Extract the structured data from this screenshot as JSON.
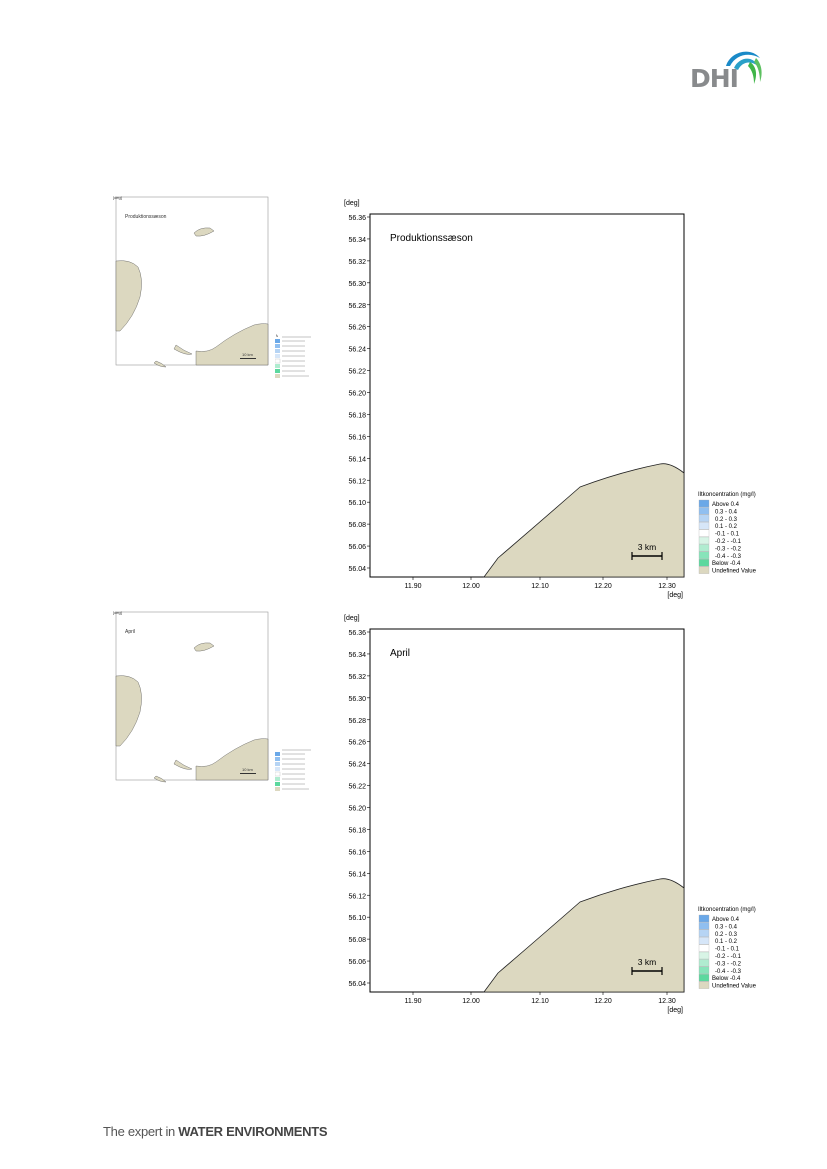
{
  "logo": {
    "text": "DHI",
    "colors": {
      "blue": "#1a8ac8",
      "green": "#3fb548",
      "grey": "#888a8c"
    }
  },
  "footer": {
    "prefix": "The expert in",
    "emphasis": "WATER ENVIRONMENTS"
  },
  "land_color": "#dcd8c0",
  "legend": {
    "title": "Iltkoncentration (mg/l)",
    "entries": [
      {
        "label": "Above  0.4",
        "color": "#6aa8e8"
      },
      {
        "label": "0.3 -  0.4",
        "color": "#90bff0"
      },
      {
        "label": "0.2 -  0.3",
        "color": "#b6d4f4"
      },
      {
        "label": "0.1 -  0.2",
        "color": "#d6e6f8"
      },
      {
        "label": "-0.1 -  0.1",
        "color": "#ffffff"
      },
      {
        "label": "-0.2 - -0.1",
        "color": "#d8f4e6"
      },
      {
        "label": "-0.3 - -0.2",
        "color": "#b0ecd0"
      },
      {
        "label": "-0.4 - -0.3",
        "color": "#88e4ba"
      },
      {
        "label": "Below -0.4",
        "color": "#5cd89e"
      },
      {
        "label": "Undefined Value",
        "color": "#dcd8c0"
      }
    ]
  },
  "maps": [
    {
      "title": "Produktionssæson",
      "y_unit": "[deg]",
      "x_unit": "[deg]",
      "y_ticks": [
        "56.36",
        "56.34",
        "56.32",
        "56.30",
        "56.28",
        "56.26",
        "56.24",
        "56.22",
        "56.20",
        "56.18",
        "56.16",
        "56.14",
        "56.12",
        "56.10",
        "56.08",
        "56.06",
        "56.04"
      ],
      "x_ticks": [
        "11.90",
        "12.00",
        "12.10",
        "12.20",
        "12.30"
      ],
      "scale_label": "3 km"
    },
    {
      "title": "April",
      "y_unit": "[deg]",
      "x_unit": "[deg]",
      "y_ticks": [
        "56.36",
        "56.34",
        "56.32",
        "56.30",
        "56.28",
        "56.26",
        "56.24",
        "56.22",
        "56.20",
        "56.18",
        "56.16",
        "56.14",
        "56.12",
        "56.10",
        "56.08",
        "56.06",
        "56.04"
      ],
      "x_ticks": [
        "11.90",
        "12.00",
        "12.10",
        "12.20",
        "12.30"
      ],
      "scale_label": "3 km"
    }
  ],
  "thumbnails": [
    {
      "title": "Produktionssæson"
    },
    {
      "title": "April"
    }
  ]
}
